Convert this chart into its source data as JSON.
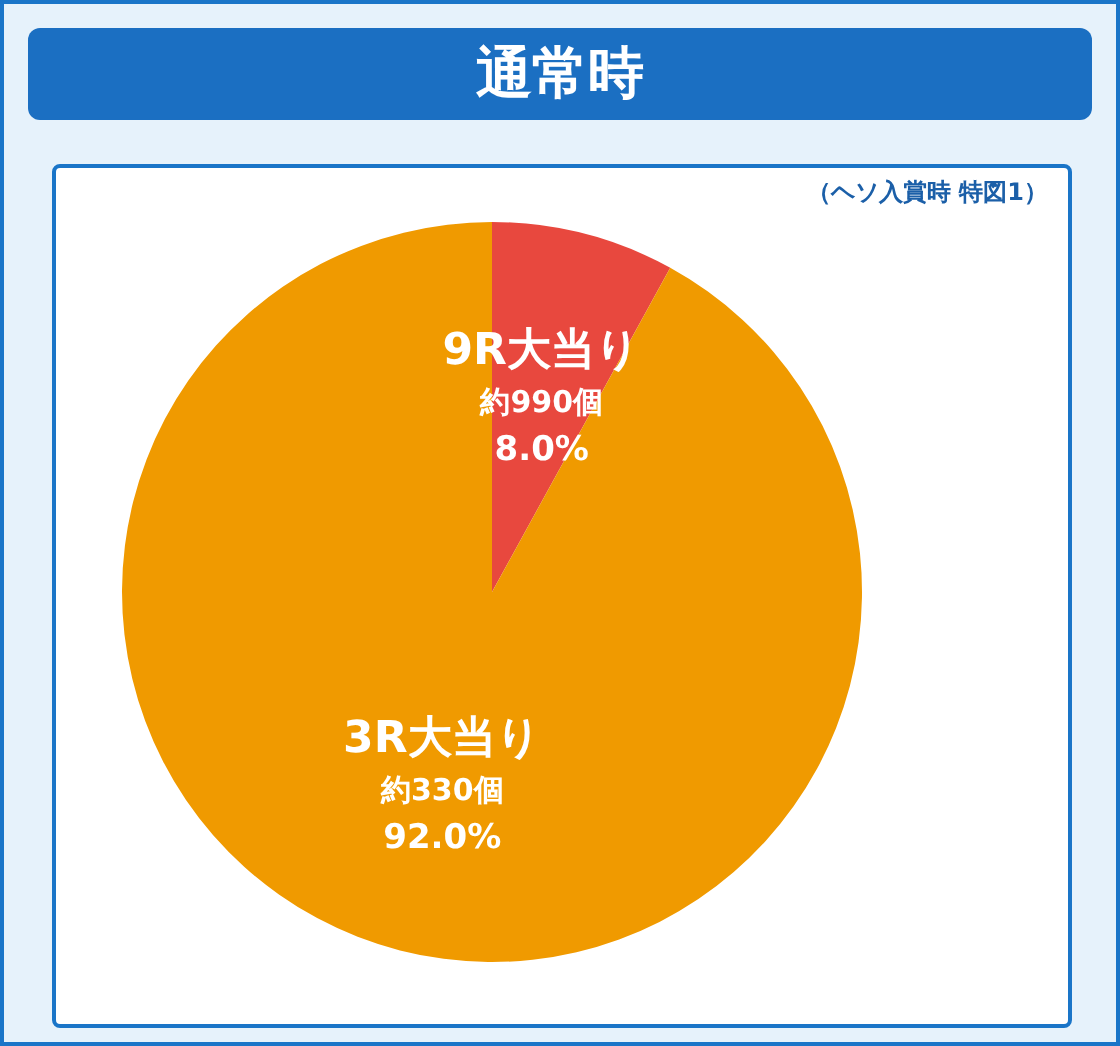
{
  "chart_data": {
    "type": "pie",
    "title": "通常時",
    "subtitle": "（ヘソ入賞時 特図1）",
    "categories": [
      "9R大当り",
      "3R大当り"
    ],
    "values": [
      8.0,
      92.0
    ],
    "colors": [
      "#e8483e",
      "#f09a00"
    ],
    "value_labels": [
      "8.0%",
      "92.0%"
    ],
    "annotations": [
      "約990個",
      "約330個"
    ],
    "legend": false
  }
}
